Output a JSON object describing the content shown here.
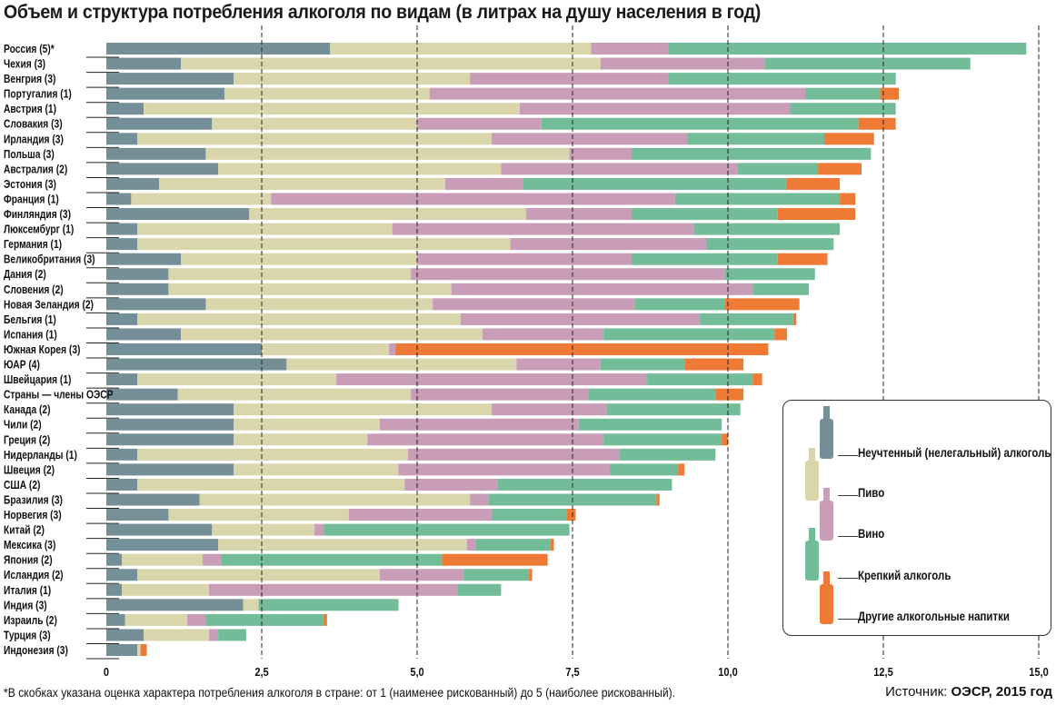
{
  "title": "Объем и структура потребления алкоголя по видам (в литрах на душу населения в год)",
  "footnote": "*В скобках указана оценка характера потребления алкоголя в стране: от 1 (наименее рискованный) до 5 (наиболее рискованный).",
  "source_label": "Источник: ",
  "source_value": "ОЭСР, 2015 год",
  "legend": [
    {
      "label": "Неучтенный (нелегальный) алкоголь",
      "color": "#748f98"
    },
    {
      "label": "Пиво",
      "color": "#d9d6ab"
    },
    {
      "label": "Вино",
      "color": "#c99cb8"
    },
    {
      "label": "Крепкий алкоголь",
      "color": "#72bd98"
    },
    {
      "label": "Другие алкогольные напитки",
      "color": "#ef7a35"
    }
  ],
  "chart_data": {
    "type": "bar",
    "orientation": "horizontal",
    "stacked": true,
    "title": "Объем и структура потребления алкоголя по видам (в литрах на душу населения в год)",
    "xlabel": "",
    "ylabel": "",
    "xlim": [
      0,
      15
    ],
    "xticks": [
      "0",
      "2,5",
      "5,0",
      "7,5",
      "10,0",
      "12,5",
      "15,0"
    ],
    "xtick_values": [
      0,
      2.5,
      5,
      7.5,
      10,
      12.5,
      15
    ],
    "grid": "vertical dashed at ticks",
    "legend_position": "bottom-right",
    "series_names": [
      "Неучтенный (нелегальный) алкоголь",
      "Пиво",
      "Вино",
      "Крепкий алкоголь",
      "Другие алкогольные напитки"
    ],
    "colors": [
      "#748f98",
      "#d9d6ab",
      "#c99cb8",
      "#72bd98",
      "#ef7a35"
    ],
    "categories": [
      "Россия (5)*",
      "Чехия (3)",
      "Венгрия (3)",
      "Португалия (1)",
      "Австрия (1)",
      "Словакия (3)",
      "Ирландия (3)",
      "Польша (3)",
      "Австралия (2)",
      "Эстония (3)",
      "Франция (1)",
      "Финляндия (3)",
      "Люксембург (1)",
      "Германия (1)",
      "Великобритания (3)",
      "Дания (2)",
      "Словения (2)",
      "Новая Зеландия (2)",
      "Бельгия (1)",
      "Испания (1)",
      "Южная Корея (3)",
      "ЮАР (4)",
      "Швейцария (1)",
      "Страны — члены ОЭСР",
      "Канада (2)",
      "Чили (2)",
      "Греция (2)",
      "Нидерланды (1)",
      "Швеция (2)",
      "США (2)",
      "Бразилия (3)",
      "Норвегия (3)",
      "Китай (2)",
      "Мексика (3)",
      "Япония (2)",
      "Исландия (2)",
      "Италия (1)",
      "Индия (3)",
      "Израиль (2)",
      "Турция (3)",
      "Индонезия (3)"
    ],
    "series": [
      {
        "name": "Неучтенный (нелегальный) алкоголь",
        "values": [
          3.6,
          1.2,
          2.05,
          1.9,
          0.6,
          1.7,
          0.5,
          1.6,
          1.8,
          0.85,
          0.4,
          2.3,
          0.5,
          0.5,
          1.2,
          1.0,
          1.0,
          1.6,
          0.5,
          1.2,
          2.5,
          2.9,
          0.5,
          1.15,
          2.05,
          2.05,
          2.05,
          0.5,
          2.05,
          0.5,
          1.5,
          1.0,
          1.7,
          1.8,
          0.25,
          0.5,
          0.25,
          2.2,
          0.3,
          0.6,
          0.5
        ]
      },
      {
        "name": "Пиво",
        "values": [
          4.2,
          6.75,
          3.8,
          3.3,
          6.05,
          3.3,
          5.7,
          5.85,
          4.55,
          4.6,
          2.25,
          4.45,
          4.1,
          6.0,
          3.8,
          3.9,
          4.55,
          3.65,
          5.2,
          4.85,
          2.05,
          3.7,
          3.2,
          3.75,
          4.15,
          2.35,
          2.15,
          4.35,
          2.65,
          4.3,
          4.35,
          2.9,
          1.65,
          4.0,
          1.3,
          3.9,
          1.4,
          0.25,
          1.0,
          1.05,
          0.05
        ]
      },
      {
        "name": "Вино",
        "values": [
          1.25,
          2.65,
          3.2,
          6.05,
          4.35,
          2.0,
          3.15,
          1.0,
          3.8,
          1.25,
          6.5,
          1.7,
          4.85,
          3.15,
          3.45,
          5.05,
          4.85,
          3.25,
          3.85,
          1.95,
          0.1,
          1.35,
          5.0,
          2.85,
          1.85,
          3.2,
          3.8,
          3.4,
          3.4,
          1.5,
          0.3,
          2.3,
          0.15,
          0.15,
          0.3,
          1.35,
          4.0,
          0.0,
          0.3,
          0.15,
          0.0
        ]
      },
      {
        "name": "Крепкий алкоголь",
        "values": [
          5.75,
          3.3,
          3.65,
          1.2,
          1.7,
          5.1,
          2.2,
          3.85,
          1.3,
          4.25,
          2.65,
          2.35,
          2.35,
          2.05,
          2.35,
          1.45,
          0.9,
          1.45,
          1.5,
          2.75,
          0.0,
          1.35,
          1.7,
          2.05,
          2.15,
          2.3,
          1.9,
          1.55,
          1.1,
          2.8,
          2.7,
          1.2,
          3.95,
          1.2,
          3.55,
          1.05,
          0.7,
          2.25,
          1.9,
          0.45,
          0.0
        ]
      },
      {
        "name": "Другие алкогольные напитки",
        "values": [
          0.0,
          0.0,
          0.0,
          0.3,
          0.0,
          0.6,
          0.8,
          0.0,
          0.7,
          0.85,
          0.25,
          1.25,
          0.0,
          0.0,
          0.8,
          0.0,
          0.0,
          1.2,
          0.05,
          0.2,
          6.0,
          0.95,
          0.15,
          0.45,
          0.0,
          0.0,
          0.1,
          0.0,
          0.1,
          0.0,
          0.05,
          0.15,
          0.0,
          0.05,
          1.7,
          0.05,
          0.0,
          0.0,
          0.05,
          0.0,
          0.1
        ]
      }
    ]
  }
}
